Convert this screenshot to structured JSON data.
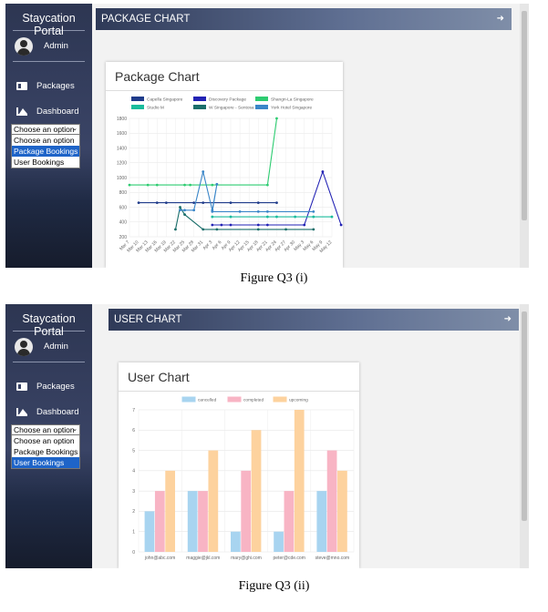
{
  "figure1": {
    "sidebar": {
      "title": "Staycation Portal",
      "user": "Admin",
      "items": [
        "Packages",
        "Dashboard"
      ],
      "select_value": "Choose an option",
      "options": [
        "Choose an option",
        "Package Bookings",
        "User Bookings"
      ],
      "selected_index": 1
    },
    "topbar_title": "PACKAGE CHART",
    "card_title": "Package Chart",
    "caption": "Figure Q3 (i)",
    "chart_data": {
      "type": "line",
      "title": "",
      "xlabel": "",
      "ylabel": "",
      "ylim": [
        200,
        1800
      ],
      "yticks": [
        200,
        400,
        600,
        800,
        1000,
        1200,
        1400,
        1600,
        1800
      ],
      "grid": true,
      "legend": "top",
      "x": [
        "Mar 7",
        "Mar 10",
        "Mar 13",
        "Mar 16",
        "Mar 19",
        "Mar 22",
        "Mar 25",
        "Mar 28",
        "Mar 31",
        "Apr 3",
        "Apr 6",
        "Apr 9",
        "Apr 12",
        "Apr 15",
        "Apr 18",
        "Apr 21",
        "Apr 24",
        "Apr 27",
        "Apr 30",
        "May 3",
        "May 6",
        "May 9",
        "May 12"
      ],
      "series": [
        {
          "name": "Capella Singapore",
          "color": "#1f3b8a",
          "points": [
            [
              1,
              660
            ],
            [
              3,
              660
            ],
            [
              4,
              660
            ],
            [
              7,
              660
            ],
            [
              8,
              660
            ],
            [
              11,
              660
            ],
            [
              14,
              660
            ],
            [
              16,
              660
            ]
          ]
        },
        {
          "name": "Discovery Package",
          "color": "#2222b4",
          "points": [
            [
              9,
              360
            ],
            [
              10,
              360
            ],
            [
              11,
              360
            ],
            [
              14,
              360
            ],
            [
              15,
              360
            ],
            [
              19,
              360
            ],
            [
              21,
              1080
            ],
            [
              23,
              360
            ]
          ]
        },
        {
          "name": "Shangri-La Singapore",
          "color": "#2ecc71",
          "points": [
            [
              0,
              900
            ],
            [
              2,
              900
            ],
            [
              3,
              900
            ],
            [
              6,
              900
            ],
            [
              6.6,
              900
            ],
            [
              9,
              900
            ],
            [
              15,
              900
            ],
            [
              16,
              1800
            ]
          ]
        },
        {
          "name": "Studio M",
          "color": "#1abc9c",
          "points": [
            [
              9,
              470
            ],
            [
              11,
              470
            ],
            [
              15,
              470
            ],
            [
              16,
              470
            ],
            [
              18,
              470
            ],
            [
              20,
              470
            ],
            [
              22,
              470
            ]
          ]
        },
        {
          "name": "W Singapore - Sentosa Cove",
          "color": "#1a6e6a",
          "points": [
            [
              5,
              300
            ],
            [
              5.5,
              600
            ],
            [
              6,
              500
            ],
            [
              8,
              300
            ],
            [
              9.5,
              300
            ],
            [
              14,
              300
            ],
            [
              17,
              300
            ],
            [
              20,
              300
            ]
          ]
        },
        {
          "name": "York Hotel Singapore",
          "color": "#3a86c8",
          "points": [
            [
              5.5,
              560
            ],
            [
              6,
              560
            ],
            [
              7,
              560
            ],
            [
              8,
              1080
            ],
            [
              9,
              560
            ],
            [
              9.5,
              910
            ],
            [
              9,
              540
            ],
            [
              12,
              540
            ],
            [
              14,
              540
            ],
            [
              15,
              540
            ],
            [
              20,
              540
            ]
          ]
        }
      ]
    }
  },
  "figure2": {
    "sidebar": {
      "title": "Staycation Portal",
      "user": "Admin",
      "items": [
        "Packages",
        "Dashboard"
      ],
      "select_value": "Choose an option",
      "options": [
        "Choose an option",
        "Package Bookings",
        "User Bookings"
      ],
      "selected_index": 2
    },
    "topbar_title": "USER CHART",
    "card_title": "User Chart",
    "caption": "Figure Q3 (ii)",
    "chart_data": {
      "type": "bar",
      "title": "",
      "xlabel": "",
      "ylabel": "",
      "ylim": [
        0,
        7
      ],
      "yticks": [
        0,
        1,
        2,
        3,
        4,
        5,
        6,
        7
      ],
      "grid": true,
      "legend": "top",
      "categories": [
        "john@abc.com",
        "maggie@jkl.com",
        "mary@ghi.com",
        "peter@cde.com",
        "steve@mno.com"
      ],
      "series": [
        {
          "name": "cancelled",
          "color": "#a8d4f0",
          "values": [
            2,
            3,
            1,
            1,
            3
          ]
        },
        {
          "name": "completed",
          "color": "#f8b4c4",
          "values": [
            3,
            3,
            4,
            3,
            5
          ]
        },
        {
          "name": "upcoming",
          "color": "#fdd29e",
          "values": [
            4,
            5,
            6,
            7,
            4
          ]
        }
      ]
    }
  }
}
